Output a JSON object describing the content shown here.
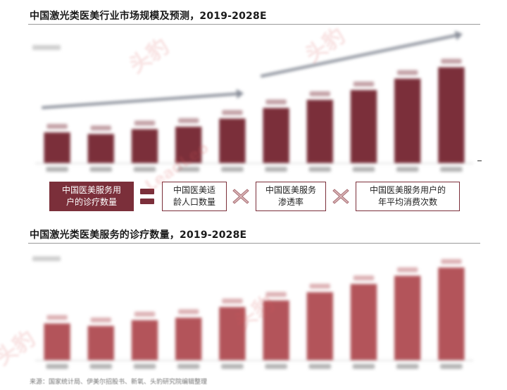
{
  "chart1": {
    "title": "中国激光类医美行业市场规模及预测，2019-2028E",
    "color": "#7b2f3a"
  },
  "chart2": {
    "title": "中国激光类医美服务的诊疗数量，2019-2028E",
    "color": "#b3545a"
  },
  "formula": {
    "result": "中国医美服务用户的诊疗数量",
    "factor1": "中国医美适龄人口数量",
    "factor2": "中国医美服务渗透率",
    "factor3": "中国医美服务用户的年平均消费次数",
    "result_lines": "中国医美服务用\n户的诊疗数量",
    "factor1_lines": "中国医美适\n龄人口数量",
    "factor2_lines": "中国医美服务\n渗透率",
    "factor3_lines": "中国医美服务用户的\n年平均消费次数"
  },
  "chart_data": [
    {
      "type": "bar",
      "categories": [
        "2019",
        "2020",
        "2021",
        "2022",
        "2023",
        "2024E",
        "2025E",
        "2026E",
        "2027E",
        "2028E"
      ],
      "values": [
        38,
        36,
        42,
        45,
        55,
        68,
        78,
        90,
        104,
        118
      ],
      "ylim": [
        0,
        140
      ],
      "color": "#7b2f3a"
    },
    {
      "type": "bar",
      "categories": [
        "2019",
        "2020",
        "2021",
        "2022",
        "2023",
        "2024E",
        "2025E",
        "2026E",
        "2027E",
        "2028E"
      ],
      "values": [
        45,
        42,
        49,
        52,
        65,
        73,
        83,
        93,
        103,
        113
      ],
      "ylim": [
        0,
        125
      ],
      "color": "#b3545a"
    }
  ],
  "watermark": {
    "text": "头豹",
    "subtext": "LeadLeo"
  }
}
